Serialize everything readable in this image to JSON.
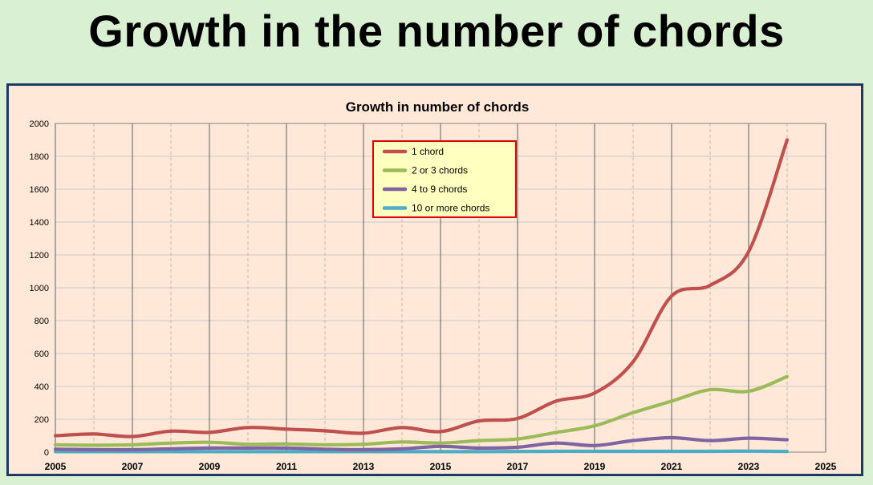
{
  "page": {
    "title": "Growth in the number of chords",
    "background": "#d9f0d3",
    "frame_border": "#1f3864"
  },
  "chart_data": {
    "type": "line",
    "title": "Growth in number of chords",
    "xlabel": "",
    "ylabel": "",
    "xlim": [
      2005,
      2025
    ],
    "ylim": [
      0,
      2000
    ],
    "x_ticks": [
      2005,
      2007,
      2009,
      2011,
      2013,
      2015,
      2017,
      2019,
      2021,
      2023,
      2025
    ],
    "y_ticks": [
      0,
      200,
      400,
      600,
      800,
      1000,
      1200,
      1400,
      1600,
      1800,
      2000
    ],
    "grid": "vertical gridlines every year, solid at labeled years",
    "plot_background": "#ffe8d8",
    "legend": {
      "position": "top-center",
      "background": "#ffffc0",
      "border_color": "#e00000"
    },
    "x": [
      2005,
      2006,
      2007,
      2008,
      2009,
      2010,
      2011,
      2012,
      2013,
      2014,
      2015,
      2016,
      2017,
      2018,
      2019,
      2020,
      2021,
      2022,
      2023,
      2024
    ],
    "series": [
      {
        "name": "1 chord",
        "color": "#c0504d",
        "values": [
          100,
          110,
          95,
          128,
          120,
          150,
          140,
          130,
          115,
          150,
          125,
          190,
          205,
          310,
          360,
          550,
          950,
          1015,
          1220,
          1900
        ]
      },
      {
        "name": "2 or 3 chords",
        "color": "#9bbb59",
        "values": [
          45,
          42,
          45,
          55,
          60,
          48,
          50,
          45,
          48,
          62,
          55,
          70,
          80,
          120,
          160,
          240,
          310,
          380,
          370,
          460
        ]
      },
      {
        "name": "4 to 9 chords",
        "color": "#8064a2",
        "values": [
          18,
          15,
          15,
          20,
          25,
          25,
          25,
          18,
          15,
          20,
          35,
          25,
          30,
          55,
          40,
          70,
          88,
          70,
          85,
          75
        ]
      },
      {
        "name": "10 or more chords",
        "color": "#4bacc6",
        "values": [
          3,
          3,
          3,
          3,
          3,
          3,
          3,
          3,
          3,
          3,
          3,
          3,
          4,
          5,
          5,
          5,
          5,
          5,
          6,
          4
        ]
      }
    ]
  }
}
